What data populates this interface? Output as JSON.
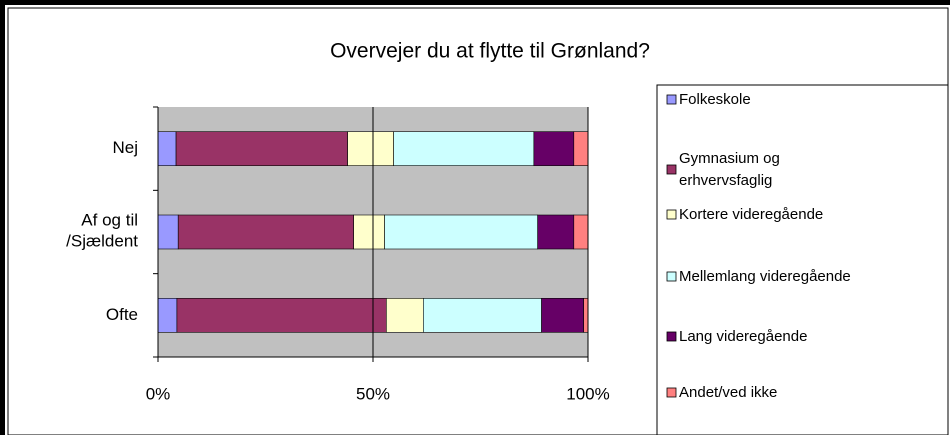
{
  "chart_data": {
    "type": "stacked-bar-horizontal",
    "title": "Overvejer du at flytte til Grønland?",
    "categories": [
      "Nej",
      "Af og til\n/Sjældent",
      "Ofte"
    ],
    "series": [
      {
        "name": "Folkeskole",
        "color": "#9999ff",
        "values": [
          4.2,
          4.7,
          4.4
        ]
      },
      {
        "name": "Gymnasium og\nerhvervsfaglig",
        "color": "#993366",
        "values": [
          39.9,
          40.8,
          48.7
        ]
      },
      {
        "name": "Kortere videregående",
        "color": "#ffffcc",
        "values": [
          10.7,
          7.2,
          8.6
        ]
      },
      {
        "name": "Mellemlang videregående",
        "color": "#ccffff",
        "values": [
          32.6,
          35.6,
          27.5
        ]
      },
      {
        "name": "Lang videregående",
        "color": "#660066",
        "values": [
          9.3,
          8.4,
          9.8
        ]
      },
      {
        "name": "Andet/ved ikke",
        "color": "#ff8080",
        "values": [
          3.3,
          3.3,
          1.0
        ]
      }
    ],
    "xlim": [
      0,
      100
    ],
    "xticks": [
      {
        "value": 0,
        "label": "0%"
      },
      {
        "value": 50,
        "label": "50%"
      },
      {
        "value": 100,
        "label": "100%"
      }
    ],
    "grid": true,
    "legend": "right"
  }
}
